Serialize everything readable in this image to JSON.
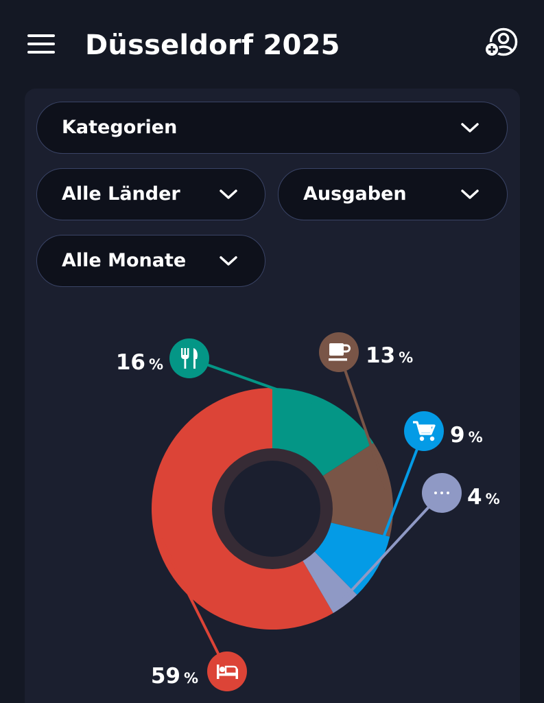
{
  "header": {
    "title": "Düsseldorf 2025",
    "menu_icon": "hamburger-menu-icon",
    "profile_icon": "add-user-icon"
  },
  "filters": {
    "category": {
      "value": "Kategorien",
      "icon": "chevron-down-icon"
    },
    "country": {
      "value": "Alle Länder",
      "icon": "chevron-down-icon"
    },
    "type": {
      "value": "Ausgaben",
      "icon": "chevron-down-icon"
    },
    "month": {
      "value": "Alle Monate",
      "icon": "chevron-down-icon"
    }
  },
  "chart_data": {
    "type": "pie",
    "style": "donut",
    "title": "",
    "unit": "%",
    "categories": [
      "Unterkunft",
      "Restaurant",
      "Café",
      "Einkaufen",
      "Sonstiges"
    ],
    "values": [
      59,
      16,
      13,
      9,
      4
    ],
    "labels": [
      "59",
      "16",
      "13",
      "9",
      "4"
    ],
    "percent_symbol": "%",
    "colors": [
      "#dc4437",
      "#049686",
      "#795547",
      "#049be6",
      "#8f99c5"
    ],
    "icons": [
      "bed-icon",
      "fork-knife-icon",
      "coffee-cup-icon",
      "shopping-cart-icon",
      "more-dots-icon"
    ]
  }
}
